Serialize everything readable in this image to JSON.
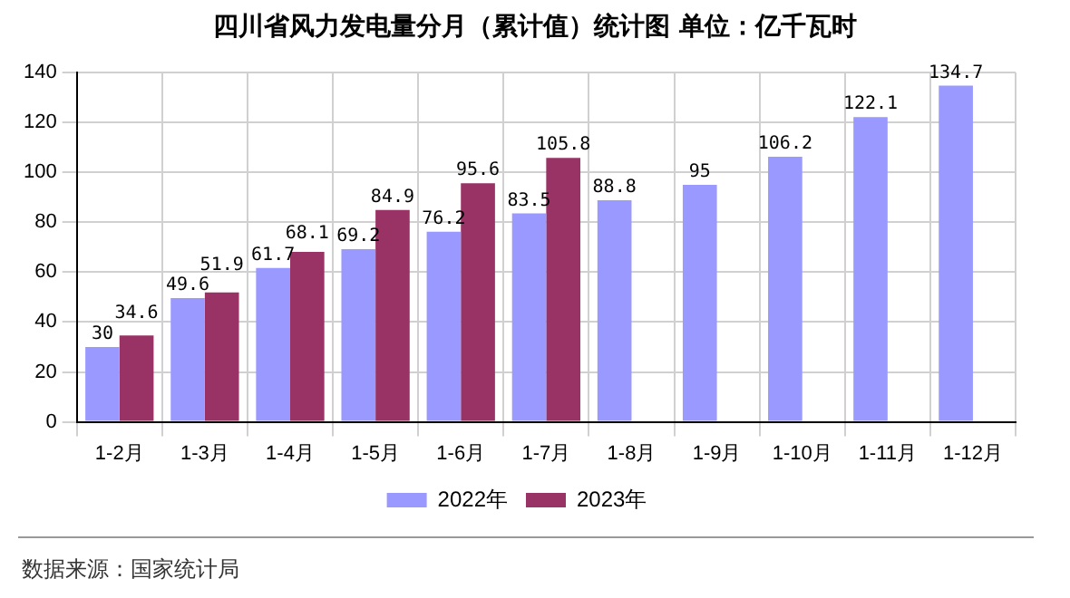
{
  "chart_data": {
    "type": "bar",
    "title": "四川省风力发电量分月（累计值）统计图 单位：亿千瓦时",
    "categories": [
      "1-2月",
      "1-3月",
      "1-4月",
      "1-5月",
      "1-6月",
      "1-7月",
      "1-8月",
      "1-9月",
      "1-10月",
      "1-11月",
      "1-12月"
    ],
    "series": [
      {
        "name": "2022年",
        "color": "#9999ff",
        "values": [
          30,
          49.6,
          61.7,
          69.2,
          76.2,
          83.5,
          88.8,
          95,
          106.2,
          122.1,
          134.7
        ]
      },
      {
        "name": "2023年",
        "color": "#993366",
        "values": [
          34.6,
          51.9,
          68.1,
          84.9,
          95.6,
          105.8,
          null,
          null,
          null,
          null,
          null
        ]
      }
    ],
    "ylim": [
      0,
      140
    ],
    "yticks": [
      0,
      20,
      40,
      60,
      80,
      100,
      120,
      140
    ],
    "grid": true,
    "legend": "bottom",
    "data_labels": true,
    "annotations": [
      "数据来源：国家统计局"
    ]
  }
}
